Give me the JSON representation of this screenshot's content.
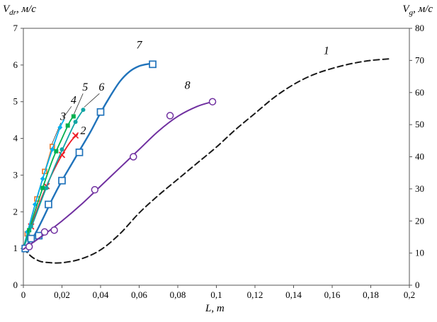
{
  "axes": {
    "left": {
      "symbol": "V",
      "sub": "dr",
      "unit": ", м/с"
    },
    "right": {
      "symbol": "V",
      "sub": "g",
      "unit": ", м/с"
    },
    "x": {
      "symbol": "L",
      "unit": ", m"
    }
  },
  "chart_data": {
    "type": "line",
    "title": "",
    "xlabel": "L, m",
    "ylabel_left": "Vdr, м/с",
    "ylabel_right": "Vg, м/с",
    "xlim": [
      0,
      0.2
    ],
    "ylim_left": [
      0,
      7
    ],
    "ylim_right": [
      0,
      80
    ],
    "grid": false,
    "legend": "none",
    "x_ticks": [
      "0",
      "0,02",
      "0,04",
      "0,06",
      "0,08",
      "0,1",
      "0,12",
      "0,14",
      "0,16",
      "0,18",
      "0,2"
    ],
    "left_ticks": [
      "0",
      "1",
      "2",
      "3",
      "4",
      "5",
      "6",
      "7"
    ],
    "right_ticks": [
      "0",
      "10",
      "20",
      "30",
      "40",
      "50",
      "60",
      "70",
      "80"
    ],
    "series": [
      {
        "name": "1",
        "axis": "right",
        "color": "#1a1a1a",
        "width": 2,
        "dash": "8,5",
        "marker": "none",
        "marker_size": 0,
        "line": [
          [
            0,
            11.5
          ],
          [
            0.004,
            9.0
          ],
          [
            0.008,
            7.6
          ],
          [
            0.012,
            7.1
          ],
          [
            0.02,
            7.0
          ],
          [
            0.03,
            8.2
          ],
          [
            0.04,
            11.0
          ],
          [
            0.05,
            16.0
          ],
          [
            0.06,
            22.5
          ],
          [
            0.07,
            28.0
          ],
          [
            0.08,
            33.0
          ],
          [
            0.09,
            38.0
          ],
          [
            0.1,
            43.0
          ],
          [
            0.11,
            48.5
          ],
          [
            0.12,
            53.5
          ],
          [
            0.13,
            58.5
          ],
          [
            0.14,
            62.5
          ],
          [
            0.15,
            65.5
          ],
          [
            0.16,
            67.5
          ],
          [
            0.17,
            69.0
          ],
          [
            0.18,
            70.0
          ],
          [
            0.19,
            70.5
          ]
        ],
        "markers": [],
        "label": {
          "text": "1",
          "x": 0.157,
          "y": 72
        }
      },
      {
        "name": "2",
        "axis": "left",
        "color": "#ee1c25",
        "width": 1.8,
        "marker": "x",
        "marker_size": 8,
        "line": [
          [
            0,
            1.0
          ],
          [
            0.005,
            1.75
          ],
          [
            0.01,
            2.45
          ],
          [
            0.015,
            3.05
          ],
          [
            0.02,
            3.55
          ],
          [
            0.025,
            3.95
          ],
          [
            0.028,
            4.1
          ]
        ],
        "markers": [
          [
            0.004,
            1.6
          ],
          [
            0.012,
            2.7
          ],
          [
            0.02,
            3.55
          ],
          [
            0.027,
            4.08
          ]
        ],
        "label": {
          "text": "2",
          "x": 0.031,
          "y": 4.12
        }
      },
      {
        "name": "3",
        "axis": "left",
        "color": "#ed7d31",
        "width": 1.8,
        "marker": "square-open",
        "marker_size": 6,
        "line": [
          [
            0,
            1.0
          ],
          [
            0.004,
            1.8
          ],
          [
            0.008,
            2.55
          ],
          [
            0.012,
            3.25
          ],
          [
            0.015,
            3.8
          ]
        ],
        "markers": [
          [
            0.002,
            1.4
          ],
          [
            0.007,
            2.35
          ],
          [
            0.011,
            3.1
          ],
          [
            0.015,
            3.78
          ]
        ],
        "label": {
          "text": "3",
          "x": 0.0205,
          "y": 4.5
        },
        "leader": [
          0.0148,
          3.85
        ]
      },
      {
        "name": "4",
        "axis": "left",
        "color": "#00b0f0",
        "width": 1.8,
        "marker": "diamond",
        "marker_size": 7,
        "line": [
          [
            0,
            1.0
          ],
          [
            0.005,
            2.0
          ],
          [
            0.01,
            2.9
          ],
          [
            0.015,
            3.7
          ],
          [
            0.019,
            4.3
          ],
          [
            0.021,
            4.5
          ]
        ],
        "markers": [
          [
            0.002,
            1.45
          ],
          [
            0.006,
            2.2
          ],
          [
            0.01,
            2.9
          ],
          [
            0.015,
            3.7
          ],
          [
            0.019,
            4.3
          ]
        ],
        "label": {
          "text": "4",
          "x": 0.026,
          "y": 4.95
        },
        "leader": [
          0.0205,
          4.55
        ]
      },
      {
        "name": "5",
        "axis": "left",
        "color": "#00b050",
        "width": 1.8,
        "marker": "square",
        "marker_size": 6,
        "line": [
          [
            0,
            1.0
          ],
          [
            0.005,
            1.85
          ],
          [
            0.01,
            2.65
          ],
          [
            0.015,
            3.4
          ],
          [
            0.02,
            4.0
          ],
          [
            0.024,
            4.45
          ],
          [
            0.026,
            4.6
          ]
        ],
        "markers": [
          [
            0.003,
            1.5
          ],
          [
            0.01,
            2.65
          ],
          [
            0.017,
            3.65
          ],
          [
            0.023,
            4.35
          ],
          [
            0.026,
            4.6
          ]
        ],
        "label": {
          "text": "5",
          "x": 0.032,
          "y": 5.3
        },
        "leader": [
          0.0262,
          4.66
        ]
      },
      {
        "name": "6",
        "axis": "left",
        "color": "#12a5a5",
        "width": 1.8,
        "marker": "circle",
        "marker_size": 6,
        "line": [
          [
            0,
            1.0
          ],
          [
            0.005,
            1.7
          ],
          [
            0.01,
            2.4
          ],
          [
            0.016,
            3.2
          ],
          [
            0.022,
            3.9
          ],
          [
            0.027,
            4.45
          ],
          [
            0.031,
            4.78
          ]
        ],
        "markers": [
          [
            0.004,
            1.6
          ],
          [
            0.012,
            2.65
          ],
          [
            0.02,
            3.7
          ],
          [
            0.027,
            4.45
          ],
          [
            0.031,
            4.78
          ]
        ],
        "label": {
          "text": "6",
          "x": 0.0405,
          "y": 5.3
        },
        "leader": [
          0.0315,
          4.85
        ]
      },
      {
        "name": "7",
        "axis": "left",
        "color": "#2073bb",
        "width": 2.4,
        "marker": "square-open",
        "marker_size": 9,
        "line": [
          [
            0,
            1.0
          ],
          [
            0.005,
            1.3
          ],
          [
            0.01,
            1.8
          ],
          [
            0.015,
            2.35
          ],
          [
            0.02,
            2.85
          ],
          [
            0.025,
            3.3
          ],
          [
            0.03,
            3.75
          ],
          [
            0.035,
            4.2
          ],
          [
            0.04,
            4.7
          ],
          [
            0.045,
            5.15
          ],
          [
            0.05,
            5.55
          ],
          [
            0.055,
            5.82
          ],
          [
            0.06,
            5.97
          ],
          [
            0.065,
            6.03
          ],
          [
            0.068,
            6.04
          ]
        ],
        "markers": [
          [
            0.001,
            1.0
          ],
          [
            0.004,
            1.27
          ],
          [
            0.008,
            1.35
          ],
          [
            0.013,
            2.2
          ],
          [
            0.02,
            2.85
          ],
          [
            0.029,
            3.62
          ],
          [
            0.04,
            4.72
          ],
          [
            0.067,
            6.02
          ]
        ],
        "label": {
          "text": "7",
          "x": 0.06,
          "y": 6.45
        }
      },
      {
        "name": "8",
        "axis": "left",
        "color": "#7030a0",
        "width": 2,
        "marker": "circle-open",
        "marker_size": 9,
        "line": [
          [
            0,
            0.98
          ],
          [
            0.01,
            1.35
          ],
          [
            0.02,
            1.75
          ],
          [
            0.03,
            2.2
          ],
          [
            0.04,
            2.7
          ],
          [
            0.05,
            3.2
          ],
          [
            0.06,
            3.7
          ],
          [
            0.07,
            4.2
          ],
          [
            0.08,
            4.6
          ],
          [
            0.09,
            4.87
          ],
          [
            0.098,
            5.0
          ]
        ],
        "markers": [
          [
            0.003,
            1.05
          ],
          [
            0.011,
            1.45
          ],
          [
            0.016,
            1.5
          ],
          [
            0.037,
            2.6
          ],
          [
            0.057,
            3.5
          ],
          [
            0.076,
            4.62
          ],
          [
            0.098,
            5.0
          ]
        ],
        "label": {
          "text": "8",
          "x": 0.085,
          "y": 5.35
        }
      }
    ]
  }
}
